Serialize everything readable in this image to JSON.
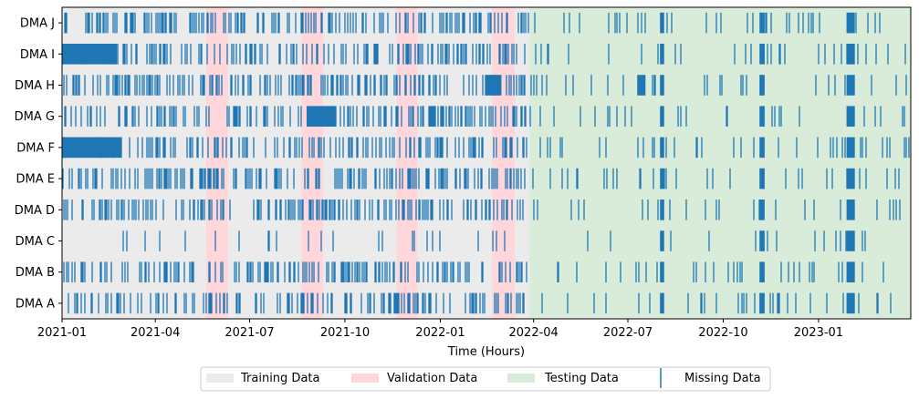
{
  "chart_data": {
    "type": "timeline",
    "xlabel": "Time (Hours)",
    "ylabel": "",
    "x_range": [
      "2021-01-01",
      "2023-03-31"
    ],
    "x_ticks": [
      "2021-01",
      "2021-04",
      "2021-07",
      "2021-10",
      "2022-01",
      "2022-04",
      "2022-07",
      "2022-10",
      "2023-01"
    ],
    "series_labels": [
      "DMA A",
      "DMA B",
      "DMA C",
      "DMA D",
      "DMA E",
      "DMA F",
      "DMA G",
      "DMA H",
      "DMA I",
      "DMA J"
    ],
    "periods": [
      {
        "type": "training",
        "start": "2021-01-01",
        "end": "2022-03-28"
      },
      {
        "type": "validation",
        "start": "2021-05-20",
        "end": "2021-06-10"
      },
      {
        "type": "validation",
        "start": "2021-08-20",
        "end": "2021-09-10"
      },
      {
        "type": "validation",
        "start": "2021-11-20",
        "end": "2021-12-10"
      },
      {
        "type": "validation",
        "start": "2022-02-20",
        "end": "2022-03-14"
      },
      {
        "type": "testing",
        "start": "2022-03-28",
        "end": "2023-03-31"
      }
    ],
    "missing_blocks": {
      "DMA J": [
        [
          "2022-08-01",
          "2022-08-05"
        ],
        [
          "2022-11-05",
          "2022-11-10"
        ],
        [
          "2023-01-28",
          "2023-02-05"
        ]
      ],
      "DMA I": [
        [
          "2021-01-01",
          "2021-02-23"
        ],
        [
          "2022-08-01",
          "2022-08-05"
        ],
        [
          "2022-11-05",
          "2022-11-10"
        ],
        [
          "2023-01-28",
          "2023-02-05"
        ]
      ],
      "DMA H": [
        [
          "2022-02-14",
          "2022-03-01"
        ],
        [
          "2022-07-10",
          "2022-07-18"
        ],
        [
          "2022-08-01",
          "2022-08-05"
        ],
        [
          "2022-11-05",
          "2022-11-10"
        ],
        [
          "2023-01-28",
          "2023-02-05"
        ]
      ],
      "DMA G": [
        [
          "2021-08-25",
          "2021-09-22"
        ],
        [
          "2022-08-01",
          "2022-08-05"
        ],
        [
          "2022-11-05",
          "2022-11-10"
        ],
        [
          "2023-01-28",
          "2023-02-05"
        ]
      ],
      "DMA F": [
        [
          "2021-01-01",
          "2021-02-27"
        ],
        [
          "2022-08-01",
          "2022-08-05"
        ],
        [
          "2022-11-05",
          "2022-11-10"
        ],
        [
          "2023-01-28",
          "2023-02-05"
        ]
      ],
      "DMA E": [
        [
          "2022-08-01",
          "2022-08-05"
        ],
        [
          "2022-11-05",
          "2022-11-10"
        ],
        [
          "2023-01-28",
          "2023-02-05"
        ]
      ],
      "DMA D": [
        [
          "2022-08-01",
          "2022-08-05"
        ],
        [
          "2022-11-05",
          "2022-11-10"
        ],
        [
          "2023-01-28",
          "2023-02-05"
        ]
      ],
      "DMA C": [
        [
          "2022-08-01",
          "2022-08-05"
        ],
        [
          "2022-11-05",
          "2022-11-10"
        ],
        [
          "2023-01-28",
          "2023-02-05"
        ]
      ],
      "DMA B": [
        [
          "2022-08-01",
          "2022-08-05"
        ],
        [
          "2022-11-05",
          "2022-11-10"
        ],
        [
          "2023-01-28",
          "2023-02-05"
        ]
      ],
      "DMA A": [
        [
          "2022-08-01",
          "2022-08-05"
        ],
        [
          "2022-11-05",
          "2022-11-10"
        ],
        [
          "2023-01-28",
          "2023-02-05"
        ]
      ]
    },
    "grid": false,
    "legend_placement": "bottom-center"
  },
  "legend": {
    "training": "Training Data",
    "validation": "Validation Data",
    "testing": "Testing Data",
    "missing": "Missing Data"
  },
  "colors": {
    "training": "#ebebeb",
    "validation": "#ffd6d9",
    "testing": "#d9ebd9",
    "missing": "#1f77b4",
    "axis": "#000000"
  }
}
